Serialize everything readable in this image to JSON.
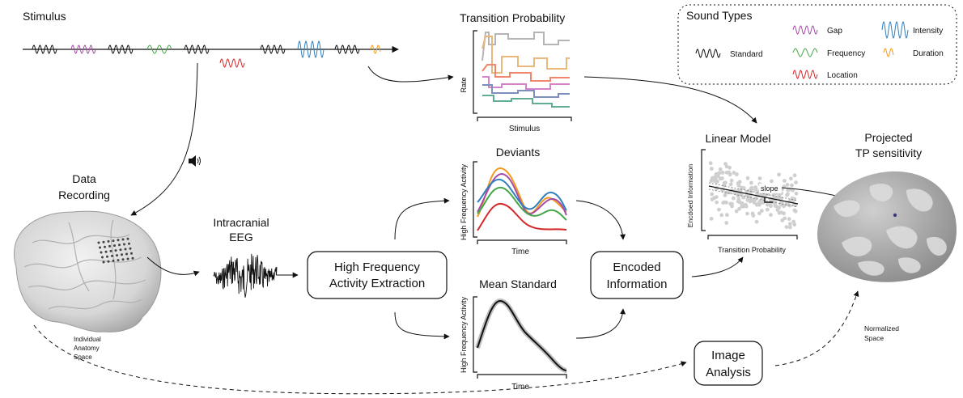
{
  "stimulus": {
    "title": "Stimulus",
    "colors": {
      "standard": "#111111",
      "gap": "#a64ca6",
      "frequency": "#44a648",
      "location": "#d62728",
      "intensity": "#2f7fbf",
      "duration": "#f29a1f"
    }
  },
  "legend": {
    "title": "Sound Types",
    "items": {
      "standard": "Standard",
      "gap": "Gap",
      "frequency": "Frequency",
      "location": "Location",
      "intensity": "Intensity",
      "duration": "Duration"
    }
  },
  "transition_probability": {
    "title": "Transition Probability",
    "ylabel": "Rate",
    "xlabel": "Stimulus"
  },
  "data_recording": {
    "line1": "Data",
    "line2": "Recording",
    "speaker_icon": "speaker-icon"
  },
  "anatomy": {
    "line1": "Individual",
    "line2": "Anatomy",
    "line3": "Space"
  },
  "eeg": {
    "line1": "Intracranial",
    "line2": "EEG"
  },
  "hfa_box": {
    "line1": "High Frequency",
    "line2": "Activity Extraction"
  },
  "deviants": {
    "title": "Deviants",
    "ylabel": "High Frequency Activity",
    "xlabel": "Time"
  },
  "mean_standard": {
    "title": "Mean Standard",
    "ylabel": "High Frequency Activity",
    "xlabel": "Time"
  },
  "encoded_box": {
    "line1": "Encoded",
    "line2": "Information"
  },
  "linear_model": {
    "title": "Linear Model",
    "ylabel": "Encdoed Information",
    "xlabel": "Transition Probability",
    "slope_label": "slope"
  },
  "image_analysis": {
    "line1": "Image",
    "line2": "Analysis"
  },
  "normalized": {
    "line1": "Normalized",
    "line2": "Space"
  },
  "projected": {
    "line1": "Projected",
    "line2": "TP sensitivity"
  }
}
